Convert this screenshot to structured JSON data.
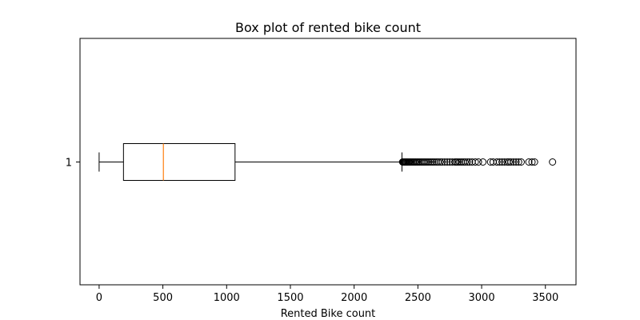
{
  "chart_data": {
    "type": "box",
    "orientation": "horizontal",
    "title": "Box plot of rented bike count",
    "xlabel": "Rented Bike count",
    "ylabel": "",
    "xlim": [
      -150,
      3740
    ],
    "x_ticks": [
      0,
      500,
      1000,
      1500,
      2000,
      2500,
      3000,
      3500
    ],
    "y_ticks": [
      "1"
    ],
    "grid": false,
    "series": [
      {
        "category": "1",
        "whisker_low": 0,
        "q1": 191,
        "median": 504,
        "q3": 1066,
        "whisker_high": 2375,
        "outliers": [
          2380,
          2385,
          2390,
          2396,
          2402,
          2408,
          2415,
          2422,
          2430,
          2438,
          2446,
          2455,
          2464,
          2473,
          2482,
          2492,
          2502,
          2512,
          2524,
          2536,
          2548,
          2560,
          2573,
          2586,
          2600,
          2614,
          2628,
          2643,
          2658,
          2674,
          2690,
          2710,
          2730,
          2750,
          2770,
          2790,
          2800,
          2812,
          2825,
          2840,
          2855,
          2870,
          2888,
          2905,
          2925,
          2950,
          2975,
          3010,
          3070,
          3090,
          3120,
          3140,
          3160,
          3180,
          3200,
          3215,
          3230,
          3250,
          3270,
          3290,
          3310,
          3370,
          3395,
          3415,
          3556
        ]
      }
    ],
    "colors": {
      "box": "#000000",
      "median": "#ff7f0e",
      "outlier": "#000000"
    }
  }
}
